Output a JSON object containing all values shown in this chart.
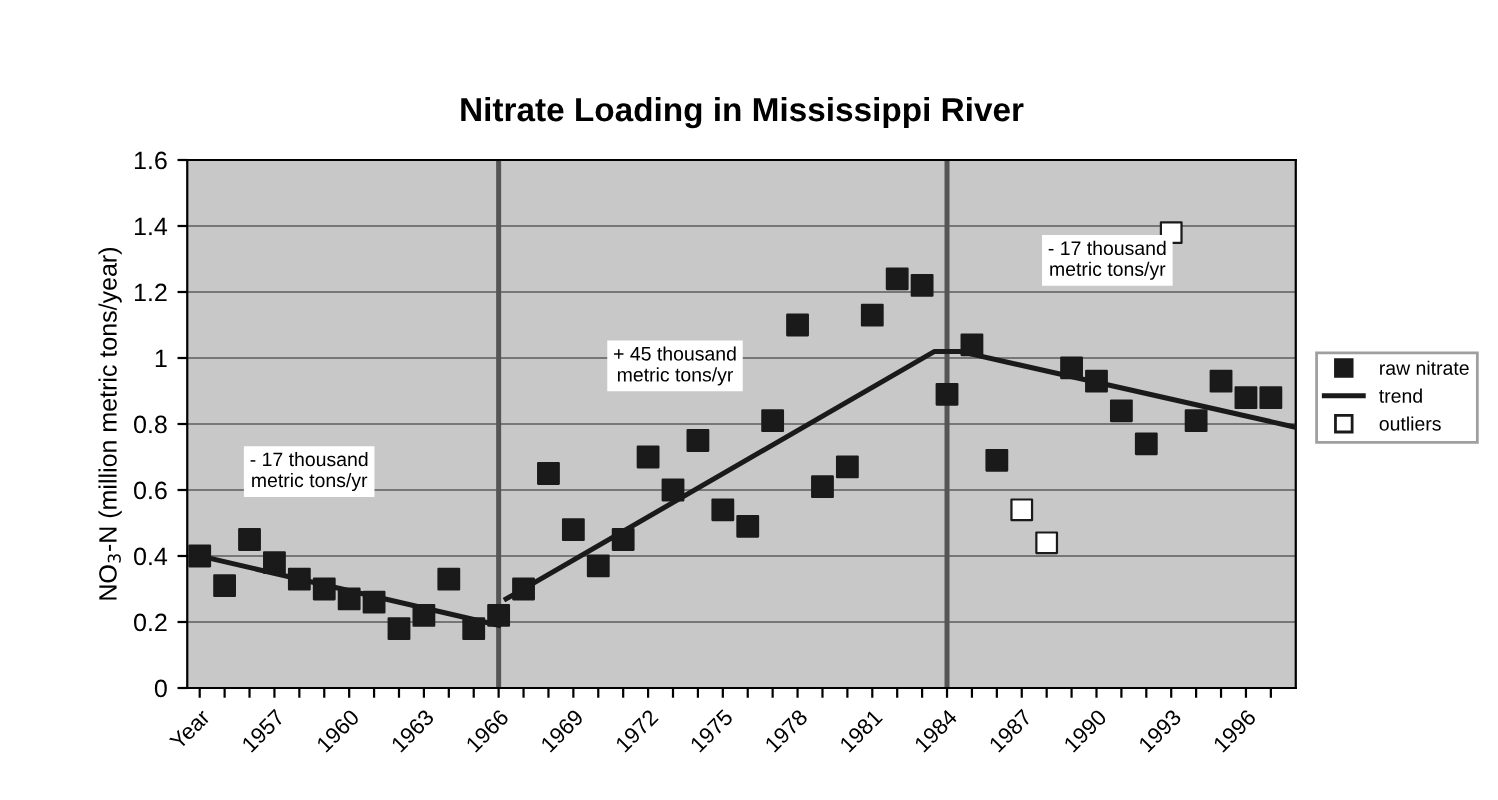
{
  "chart_data": {
    "type": "scatter",
    "title": "Nitrate Loading in Mississippi River",
    "ylabel": "NO$_{3}$-N (million metric tons/year)",
    "xlim": [
      1953.5,
      1998
    ],
    "ylim": [
      0,
      1.6
    ],
    "yticks": [
      0,
      0.2,
      0.4,
      0.6,
      0.8,
      1,
      1.2,
      1.4,
      1.6
    ],
    "xticks": [
      {
        "value": 1954,
        "label": "Year"
      },
      {
        "value": 1955,
        "label": null
      },
      {
        "value": 1956,
        "label": null
      },
      1957,
      {
        "value": 1958,
        "label": null
      },
      {
        "value": 1959,
        "label": null
      },
      1960,
      {
        "value": 1961,
        "label": null
      },
      {
        "value": 1962,
        "label": null
      },
      1963,
      {
        "value": 1964,
        "label": null
      },
      {
        "value": 1965,
        "label": null
      },
      1966,
      {
        "value": 1967,
        "label": null
      },
      {
        "value": 1968,
        "label": null
      },
      1969,
      {
        "value": 1970,
        "label": null
      },
      {
        "value": 1971,
        "label": null
      },
      1972,
      {
        "value": 1973,
        "label": null
      },
      {
        "value": 1974,
        "label": null
      },
      1975,
      {
        "value": 1976,
        "label": null
      },
      {
        "value": 1977,
        "label": null
      },
      1978,
      {
        "value": 1979,
        "label": null
      },
      {
        "value": 1980,
        "label": null
      },
      1981,
      {
        "value": 1982,
        "label": null
      },
      {
        "value": 1983,
        "label": null
      },
      1984,
      {
        "value": 1985,
        "label": null
      },
      {
        "value": 1986,
        "label": null
      },
      1987,
      {
        "value": 1988,
        "label": null
      },
      {
        "value": 1989,
        "label": null
      },
      1990,
      {
        "value": 1991,
        "label": null
      },
      {
        "value": 1992,
        "label": null
      },
      1993,
      {
        "value": 1994,
        "label": null
      },
      {
        "value": 1995,
        "label": null
      },
      1996,
      {
        "value": 1997,
        "label": null
      }
    ],
    "grid": "y",
    "legend": "right",
    "marker": "square",
    "series": [
      {
        "name": "raw nitrate",
        "color": "#1a1a1a",
        "x": [
          1954,
          1955,
          1956,
          1957,
          1958,
          1959,
          1960,
          1961,
          1962,
          1963,
          1964,
          1965,
          1966,
          1967,
          1968,
          1969,
          1970,
          1971,
          1972,
          1973,
          1974,
          1975,
          1976,
          1977,
          1978,
          1979,
          1980,
          1981,
          1982,
          1983,
          1984,
          1985,
          1986,
          1989,
          1990,
          1991,
          1992,
          1994,
          1995,
          1996,
          1997
        ],
        "values": [
          0.4,
          0.31,
          0.45,
          0.38,
          0.33,
          0.3,
          0.27,
          0.26,
          0.18,
          0.22,
          0.33,
          0.18,
          0.22,
          0.3,
          0.65,
          0.48,
          0.37,
          0.45,
          0.7,
          0.6,
          0.75,
          0.54,
          0.49,
          0.81,
          1.1,
          0.61,
          0.67,
          1.13,
          1.24,
          1.22,
          0.89,
          1.04,
          0.69,
          0.97,
          0.93,
          0.84,
          0.74,
          0.81,
          0.93,
          0.88,
          0.88
        ]
      },
      {
        "name": "trend",
        "type": "line",
        "color": "#1a1a1a",
        "marker": "none",
        "x": [
          1954,
          1966,
          1966.1,
          1966.3,
          1983.5,
          1984.5,
          1998
        ],
        "values": [
          0.4,
          0.19,
          null,
          0.27,
          1.02,
          1.02,
          0.79
        ]
      },
      {
        "name": "outliers",
        "color": "#ffffff",
        "x": [
          1987,
          1988,
          1993
        ],
        "values": [
          0.54,
          0.44,
          1.38
        ]
      }
    ],
    "ref_lines": [
      {
        "axis": "x",
        "value": 1966
      },
      {
        "axis": "x",
        "value": 1984
      }
    ],
    "annotations": [
      "- 17 thousand\nmetric tons/yr",
      "+ 45 thousand\nmetric tons/yr",
      "- 17 thousand\nmetric tons/yr"
    ]
  }
}
